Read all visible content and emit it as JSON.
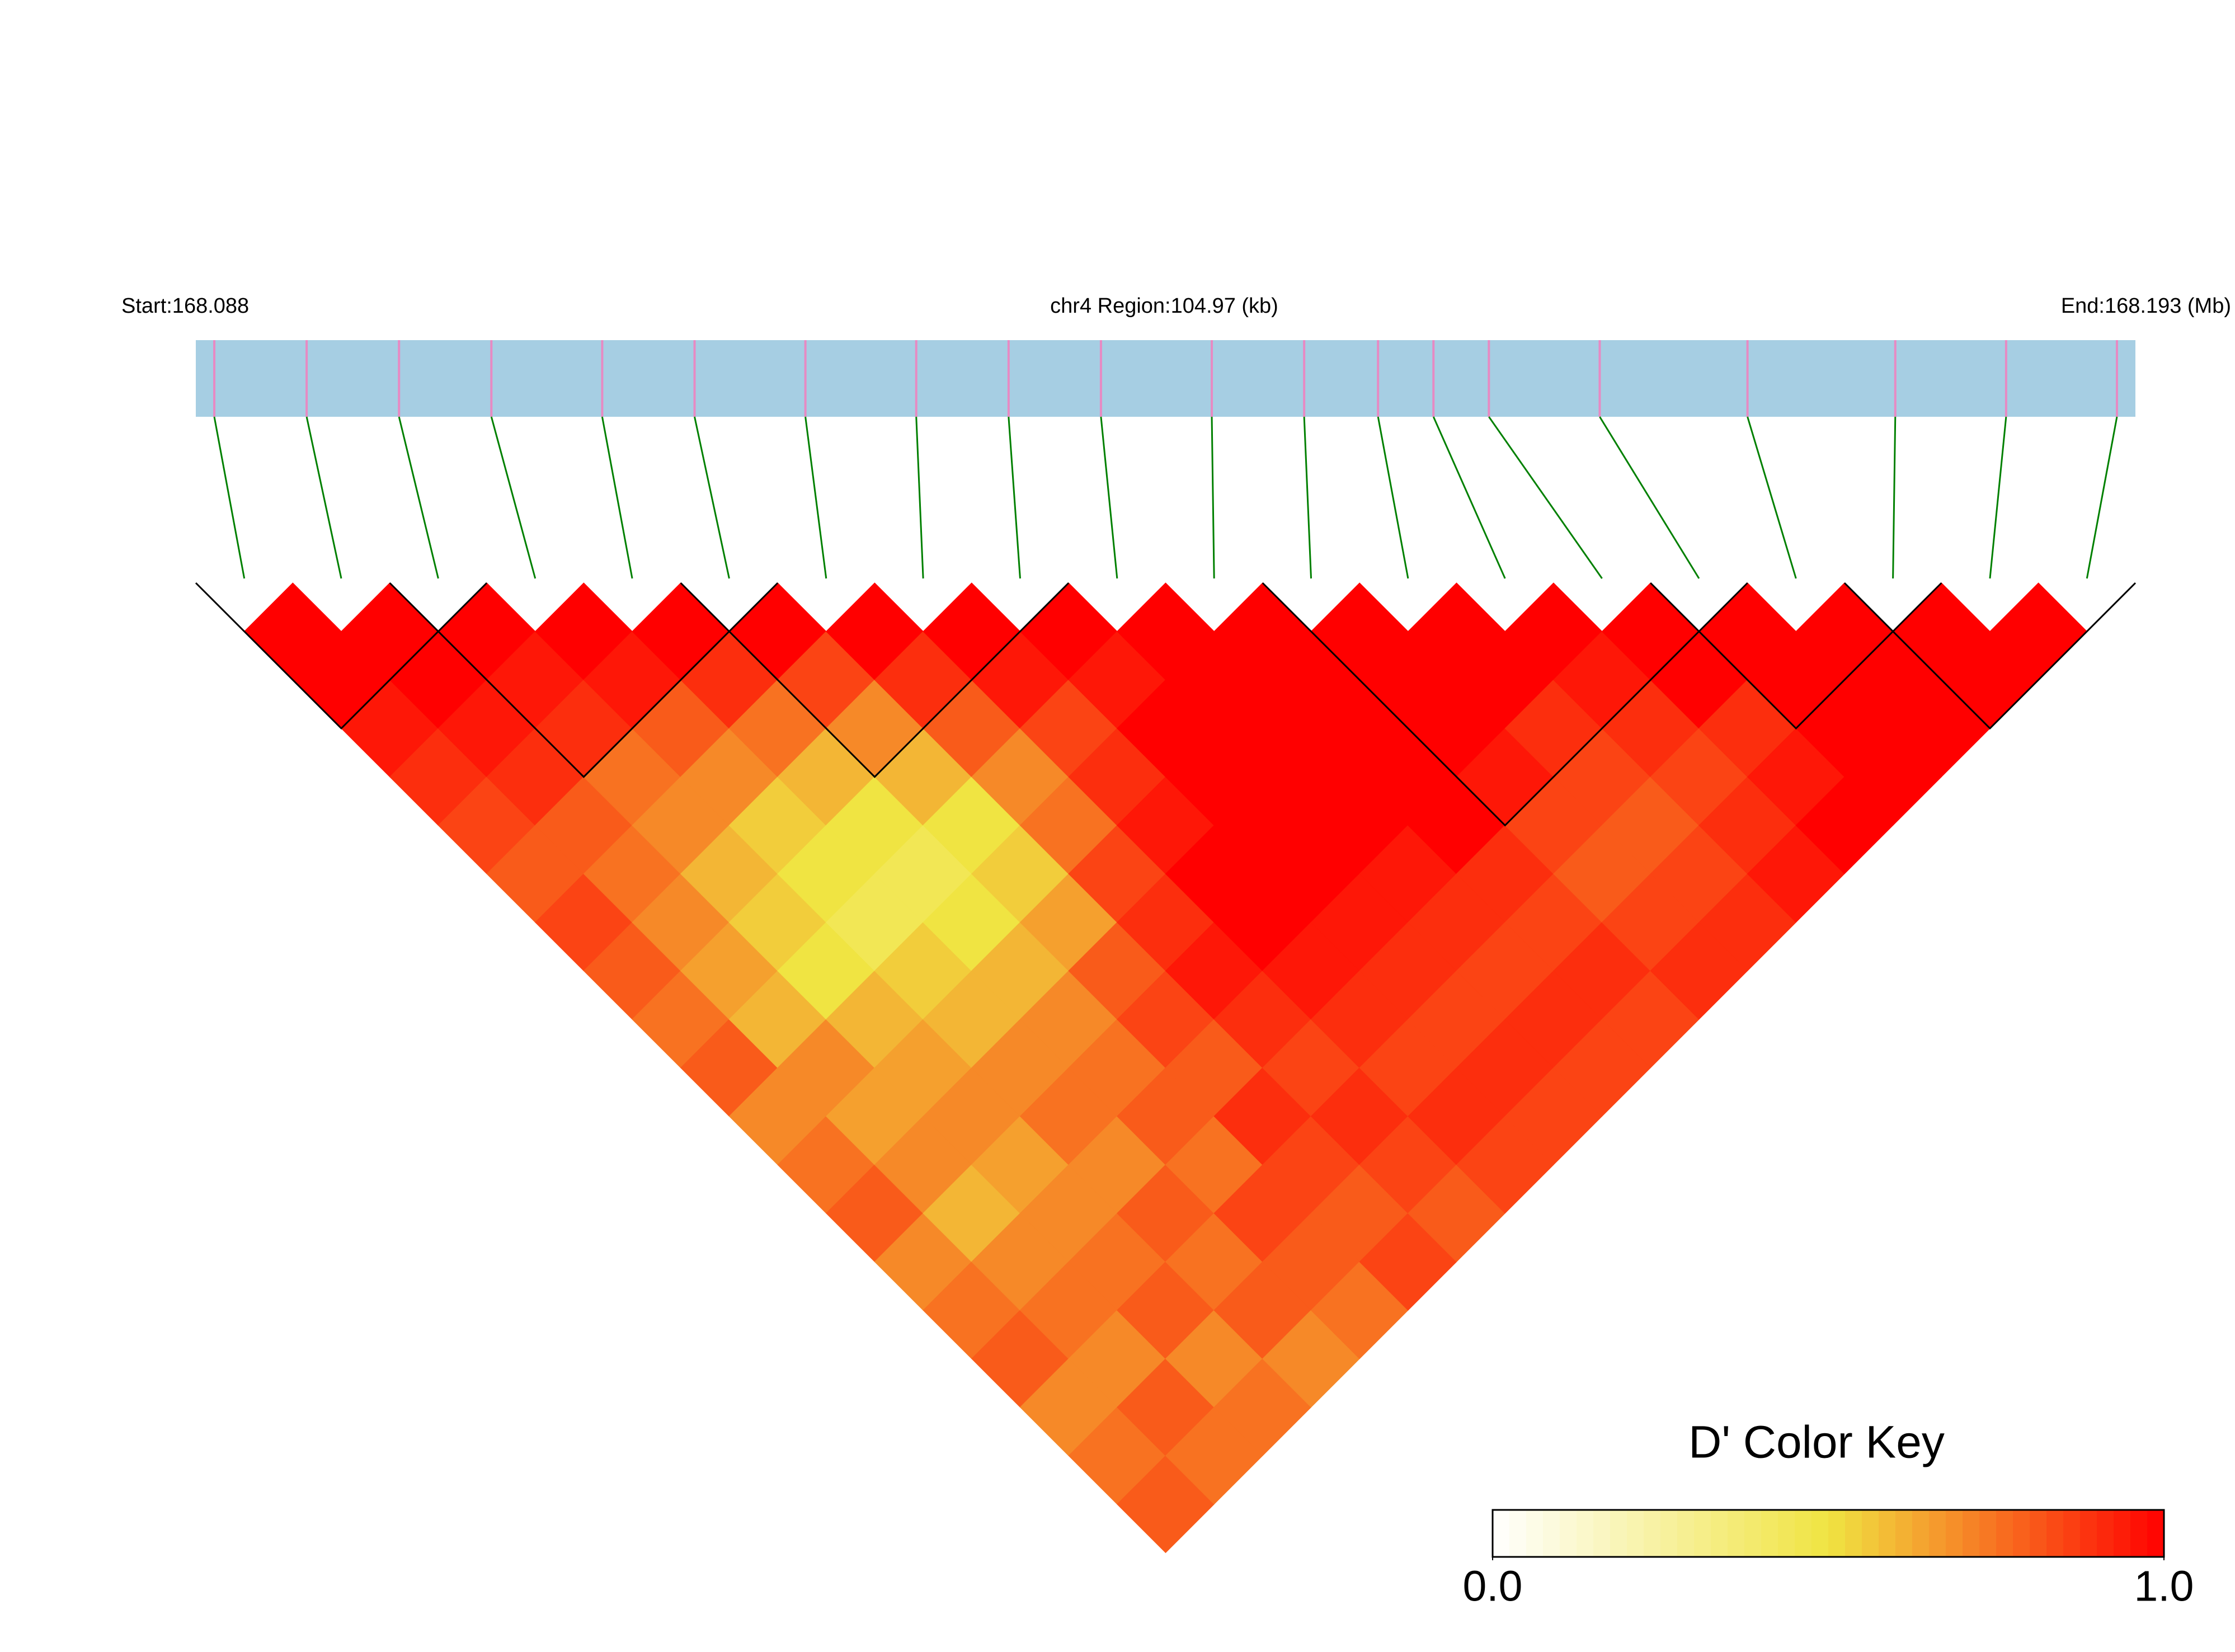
{
  "chart_data": {
    "type": "heatmap",
    "start_label": "Start:168.088",
    "region_label": "chr4 Region:104.97 (kb)",
    "end_label": "End:168.193 (Mb)",
    "colorkey_title": "D' Color Key",
    "xlim": [
      168.088,
      168.193
    ],
    "x": [
      168.089,
      168.094,
      168.099,
      168.104,
      168.11,
      168.115,
      168.121,
      168.127,
      168.132,
      168.137,
      168.143,
      168.148,
      168.152,
      168.155,
      168.158,
      168.164,
      168.172,
      168.18,
      168.186,
      168.192
    ],
    "matrix": [
      [
        1,
        1,
        0.95,
        0.9,
        0.85,
        0.8,
        0.85,
        0.8,
        0.75,
        0.8,
        0.7,
        0.75,
        0.8,
        0.7,
        0.75,
        0.8,
        0.7,
        0.75,
        0.8
      ],
      [
        1,
        1,
        0.95,
        0.9,
        0.8,
        0.75,
        0.7,
        0.65,
        0.6,
        0.7,
        0.65,
        0.7,
        0.6,
        0.7,
        0.75,
        0.7,
        0.8,
        0.75
      ],
      [
        1,
        0.95,
        0.9,
        0.75,
        0.7,
        0.6,
        0.55,
        0.5,
        0.6,
        0.65,
        0.7,
        0.65,
        0.7,
        0.75,
        0.8,
        0.7,
        0.75
      ],
      [
        1,
        0.95,
        0.8,
        0.7,
        0.55,
        0.5,
        0.45,
        0.55,
        0.6,
        0.7,
        0.75,
        0.7,
        0.8,
        0.75,
        0.8,
        0.7
      ],
      [
        1,
        0.9,
        0.75,
        0.6,
        0.5,
        0.45,
        0.5,
        0.6,
        0.7,
        0.75,
        0.8,
        0.75,
        0.85,
        0.8,
        0.75
      ],
      [
        1,
        0.85,
        0.7,
        0.6,
        0.5,
        0.55,
        0.65,
        0.8,
        0.85,
        0.8,
        0.9,
        0.85,
        0.8,
        0.85
      ],
      [
        1,
        0.9,
        0.8,
        0.7,
        0.75,
        0.85,
        0.9,
        0.95,
        0.9,
        0.85,
        0.9,
        0.85,
        0.8
      ],
      [
        1,
        0.95,
        0.85,
        0.9,
        0.95,
        1,
        1,
        0.95,
        0.9,
        0.85,
        0.9,
        0.85
      ],
      [
        1,
        0.95,
        1,
        1,
        1,
        1,
        0.95,
        0.9,
        0.85,
        0.9,
        0.85
      ],
      [
        1,
        1,
        1,
        1,
        1,
        0.95,
        0.9,
        0.85,
        0.9,
        0.85
      ],
      [
        1,
        1,
        1,
        1,
        1,
        0.9,
        0.85,
        0.9,
        0.85
      ],
      [
        1,
        1,
        1,
        0.95,
        0.85,
        0.8,
        0.85,
        0.9
      ],
      [
        1,
        1,
        0.9,
        0.85,
        0.8,
        0.85,
        0.9
      ],
      [
        1,
        0.95,
        0.9,
        0.85,
        0.9,
        0.95
      ],
      [
        1,
        1,
        0.9,
        0.95,
        1
      ],
      [
        1,
        1,
        1,
        1
      ],
      [
        1,
        1,
        1
      ],
      [
        1,
        1
      ],
      [
        1
      ]
    ],
    "blocks": [
      [
        0,
        2
      ],
      [
        2,
        5
      ],
      [
        5,
        8
      ],
      [
        11,
        15
      ],
      [
        15,
        17
      ],
      [
        17,
        19
      ]
    ],
    "clim": [
      0,
      1
    ],
    "cticks": [
      {
        "value": 0,
        "label": "0.0"
      },
      {
        "value": 1,
        "label": "1.0"
      }
    ],
    "colors": [
      "#ffffff",
      "#f0e442",
      "#ff0000"
    ],
    "track_color": "#a6cee3",
    "snp_color": "#e78ac3",
    "link_color": "#008000",
    "block_color": "#000000"
  }
}
